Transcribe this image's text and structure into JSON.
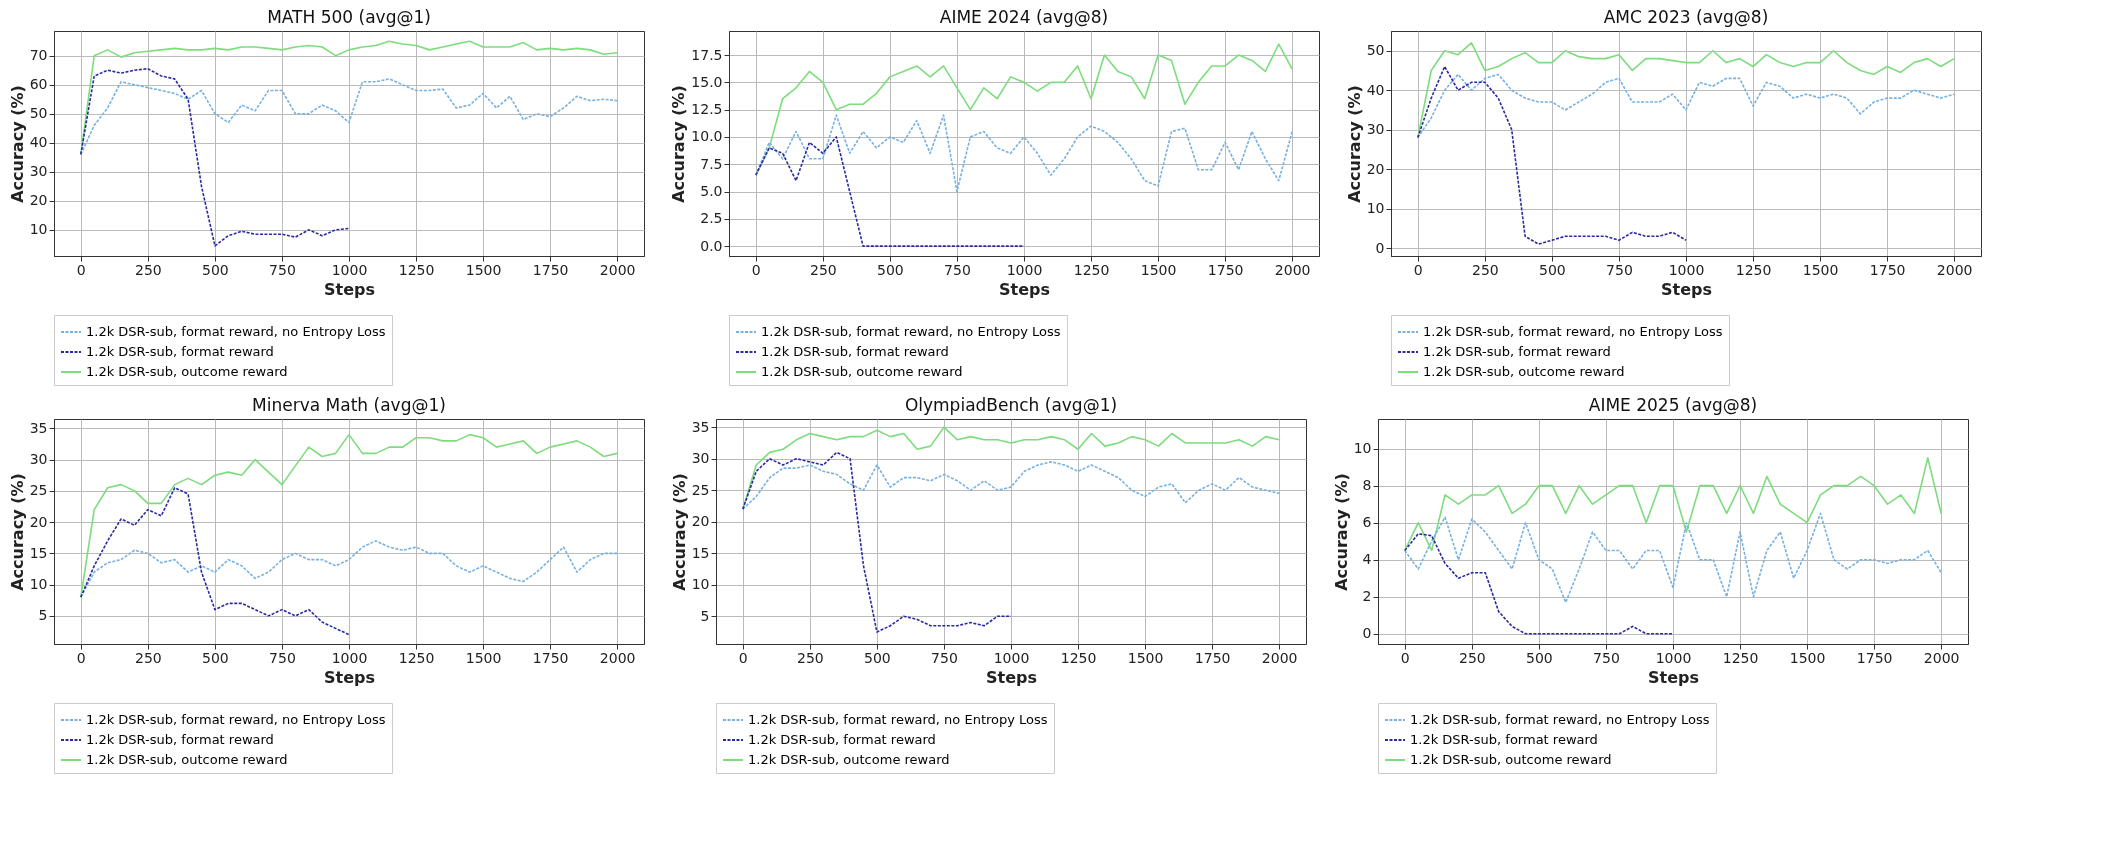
{
  "chart_data": [
    {
      "type": "line",
      "title": "MATH 500 (avg@1)",
      "xlabel": "Steps",
      "ylabel": "Accuracy (%)",
      "grid": true,
      "legend": "bottom",
      "xlim": [
        -100,
        2100
      ],
      "xticks": [
        0,
        250,
        500,
        750,
        1000,
        1250,
        1500,
        1750,
        2000
      ],
      "ylim": [
        1,
        78.5
      ],
      "yticks": [
        10,
        20,
        30,
        40,
        50,
        60,
        70
      ],
      "x": [
        0,
        50,
        100,
        150,
        200,
        250,
        300,
        350,
        400,
        450,
        500,
        550,
        600,
        650,
        700,
        750,
        800,
        850,
        900,
        950,
        1000,
        1050,
        1100,
        1150,
        1200,
        1250,
        1300,
        1350,
        1400,
        1450,
        1500,
        1550,
        1600,
        1650,
        1700,
        1750,
        1800,
        1850,
        1900,
        1950,
        2000
      ],
      "series": [
        {
          "name": "1.2k DSR-sub, format reward, no Entropy Loss",
          "color": "#76b1e0",
          "line_style": "dashed",
          "values": [
            36,
            46,
            52,
            61,
            60,
            59,
            58,
            57,
            55,
            58,
            50,
            47,
            53,
            51,
            58,
            58,
            50,
            50,
            53,
            51,
            47,
            61,
            61,
            62,
            60,
            58,
            58,
            58.5,
            52,
            53,
            57,
            52,
            56,
            48,
            50,
            49,
            52,
            56,
            54.5,
            55,
            54.5
          ]
        },
        {
          "name": "1.2k DSR-sub, format reward",
          "color": "#2a2aa0",
          "line_style": "dashed",
          "x": [
            0,
            50,
            100,
            150,
            200,
            250,
            300,
            350,
            400,
            450,
            500,
            550,
            600,
            650,
            700,
            750,
            800,
            850,
            900,
            950,
            1000
          ],
          "values": [
            36,
            63,
            65,
            64,
            65,
            65.5,
            63,
            62,
            55,
            25,
            4.5,
            8,
            9.5,
            8.5,
            8.5,
            8.5,
            7.5,
            10,
            8,
            10,
            10.5
          ]
        },
        {
          "name": "1.2k DSR-sub, outcome reward",
          "color": "#7ddc7d",
          "line_style": "solid",
          "values": [
            36,
            70,
            72,
            69.5,
            71,
            71.5,
            72,
            72.5,
            72,
            72,
            72.5,
            72,
            73,
            73,
            72.5,
            72,
            73,
            73.5,
            73,
            70,
            72,
            73,
            73.5,
            75,
            74,
            73.5,
            72,
            73,
            74,
            75,
            73,
            73,
            73,
            74.5,
            72,
            72.5,
            72,
            72.5,
            72,
            70.5,
            71
          ]
        }
      ]
    },
    {
      "type": "line",
      "title": "AIME 2024 (avg@8)",
      "xlabel": "Steps",
      "ylabel": "Accuracy (%)",
      "grid": true,
      "legend": "bottom",
      "xlim": [
        -100,
        2100
      ],
      "xticks": [
        0,
        250,
        500,
        750,
        1000,
        1250,
        1500,
        1750,
        2000
      ],
      "ylim": [
        -0.9,
        19.7
      ],
      "yticks": [
        {
          "value": 0,
          "label": "0.0"
        },
        2.5,
        {
          "value": 5,
          "label": "5.0"
        },
        7.5,
        {
          "value": 10,
          "label": "10.0"
        },
        12.5,
        {
          "value": 15,
          "label": "15.0"
        },
        17.5
      ],
      "x": [
        0,
        50,
        100,
        150,
        200,
        250,
        300,
        350,
        400,
        450,
        500,
        550,
        600,
        650,
        700,
        750,
        800,
        850,
        900,
        950,
        1000,
        1050,
        1100,
        1150,
        1200,
        1250,
        1300,
        1350,
        1400,
        1450,
        1500,
        1550,
        1600,
        1650,
        1700,
        1750,
        1800,
        1850,
        1900,
        1950,
        2000
      ],
      "series": [
        {
          "name": "1.2k DSR-sub, format reward, no Entropy Loss",
          "color": "#76b1e0",
          "line_style": "dashed",
          "values": [
            6.5,
            9.5,
            8,
            10.5,
            8,
            8,
            12,
            8.5,
            10.5,
            9,
            10,
            9.5,
            11.5,
            8.5,
            12,
            5,
            10,
            10.5,
            9,
            8.5,
            10,
            8.5,
            6.5,
            8,
            10,
            11,
            10.5,
            9.5,
            8,
            6,
            5.5,
            10.5,
            10.8,
            7,
            7,
            9.5,
            7,
            10.5,
            8,
            6,
            10.5
          ]
        },
        {
          "name": "1.2k DSR-sub, format reward",
          "color": "#2a2aa0",
          "line_style": "dashed",
          "x": [
            0,
            50,
            100,
            150,
            200,
            250,
            300,
            350,
            400,
            450,
            500,
            550,
            600,
            650,
            700,
            750,
            800,
            850,
            900,
            950,
            1000
          ],
          "values": [
            6.5,
            9,
            8.5,
            6,
            9.5,
            8.5,
            10,
            5,
            0,
            0,
            0,
            0,
            0,
            0,
            0,
            0,
            0,
            0,
            0,
            0,
            0
          ]
        },
        {
          "name": "1.2k DSR-sub, outcome reward",
          "color": "#7ddc7d",
          "line_style": "solid",
          "values": [
            6.5,
            9,
            13.5,
            14.5,
            16,
            15,
            12.5,
            13,
            13,
            14,
            15.5,
            16,
            16.5,
            15.5,
            16.5,
            14.5,
            12.5,
            14.5,
            13.5,
            15.5,
            15,
            14.2,
            15,
            15,
            16.5,
            13.5,
            17.5,
            16,
            15.5,
            13.5,
            17.5,
            17,
            13,
            15,
            16.5,
            16.5,
            17.5,
            17,
            16,
            18.5,
            16.2
          ]
        }
      ]
    },
    {
      "type": "line",
      "title": "AMC 2023 (avg@8)",
      "xlabel": "Steps",
      "ylabel": "Accuracy (%)",
      "grid": true,
      "legend": "bottom",
      "xlim": [
        -100,
        2100
      ],
      "xticks": [
        0,
        250,
        500,
        750,
        1000,
        1250,
        1500,
        1750,
        2000
      ],
      "ylim": [
        -2,
        55
      ],
      "yticks": [
        0,
        10,
        20,
        30,
        40,
        50
      ],
      "x": [
        0,
        50,
        100,
        150,
        200,
        250,
        300,
        350,
        400,
        450,
        500,
        550,
        600,
        650,
        700,
        750,
        800,
        850,
        900,
        950,
        1000,
        1050,
        1100,
        1150,
        1200,
        1250,
        1300,
        1350,
        1400,
        1450,
        1500,
        1550,
        1600,
        1650,
        1700,
        1750,
        1800,
        1850,
        1900,
        1950,
        2000
      ],
      "series": [
        {
          "name": "1.2k DSR-sub, format reward, no Entropy Loss",
          "color": "#76b1e0",
          "line_style": "dashed",
          "values": [
            28,
            33,
            40,
            44,
            40,
            43,
            44,
            40,
            38,
            37,
            37,
            35,
            37,
            39,
            42,
            43,
            37,
            37,
            37,
            39,
            35,
            42,
            41,
            43,
            43,
            36,
            42,
            41,
            38,
            39,
            38,
            39,
            38,
            34,
            37,
            38,
            38,
            40,
            39,
            38,
            39
          ]
        },
        {
          "name": "1.2k DSR-sub, format reward",
          "color": "#2a2aa0",
          "line_style": "dashed",
          "x": [
            0,
            50,
            100,
            150,
            200,
            250,
            300,
            350,
            400,
            450,
            500,
            550,
            600,
            650,
            700,
            750,
            800,
            850,
            900,
            950,
            1000
          ],
          "values": [
            28,
            38,
            46,
            40,
            42,
            42,
            38,
            30,
            3,
            1,
            2,
            3,
            3,
            3,
            3,
            2,
            4,
            3,
            3,
            4,
            2
          ]
        },
        {
          "name": "1.2k DSR-sub, outcome reward",
          "color": "#7ddc7d",
          "line_style": "solid",
          "values": [
            28,
            45,
            50,
            49,
            52,
            45,
            46,
            48,
            49.5,
            47,
            47,
            50,
            48.5,
            48,
            48,
            49,
            45,
            48,
            48,
            47.5,
            47,
            47,
            50,
            47,
            48,
            46,
            49,
            47,
            46,
            47,
            47,
            50,
            47,
            45,
            44,
            46,
            44.5,
            47,
            48,
            46,
            48
          ]
        }
      ]
    },
    {
      "type": "line",
      "title": "Minerva Math (avg@1)",
      "xlabel": "Steps",
      "ylabel": "Accuracy (%)",
      "grid": true,
      "legend": "bottom",
      "xlim": [
        -100,
        2100
      ],
      "xticks": [
        0,
        250,
        500,
        750,
        1000,
        1250,
        1500,
        1750,
        2000
      ],
      "ylim": [
        0.5,
        36.5
      ],
      "yticks": [
        5,
        10,
        15,
        20,
        25,
        30,
        35
      ],
      "x": [
        0,
        50,
        100,
        150,
        200,
        250,
        300,
        350,
        400,
        450,
        500,
        550,
        600,
        650,
        700,
        750,
        800,
        850,
        900,
        950,
        1000,
        1050,
        1100,
        1150,
        1200,
        1250,
        1300,
        1350,
        1400,
        1450,
        1500,
        1550,
        1600,
        1650,
        1700,
        1750,
        1800,
        1850,
        1900,
        1950,
        2000
      ],
      "series": [
        {
          "name": "1.2k DSR-sub, format reward, no Entropy Loss",
          "color": "#76b1e0",
          "line_style": "dashed",
          "values": [
            8,
            12,
            13.5,
            14,
            15.5,
            15,
            13.5,
            14,
            12,
            13,
            12,
            14,
            13,
            11,
            12,
            14,
            15,
            14,
            14,
            13,
            14,
            16,
            17,
            16,
            15.5,
            16,
            15,
            15,
            13,
            12,
            13,
            12,
            11,
            10.5,
            12,
            14,
            16,
            12,
            14,
            15,
            15
          ]
        },
        {
          "name": "1.2k DSR-sub, format reward",
          "color": "#2a2aa0",
          "line_style": "dashed",
          "x": [
            0,
            50,
            100,
            150,
            200,
            250,
            300,
            350,
            400,
            450,
            500,
            550,
            600,
            650,
            700,
            750,
            800,
            850,
            900,
            950,
            1000
          ],
          "values": [
            8,
            13,
            17,
            20.5,
            19.5,
            22,
            21,
            25.5,
            24.5,
            12,
            6,
            7,
            7,
            6,
            5,
            6,
            5,
            6,
            4,
            3,
            2
          ]
        },
        {
          "name": "1.2k DSR-sub, outcome reward",
          "color": "#7ddc7d",
          "line_style": "solid",
          "values": [
            8,
            22,
            25.5,
            26,
            25,
            23,
            23,
            26,
            27,
            26,
            27.5,
            28,
            27.5,
            30,
            28,
            26,
            29,
            32,
            30.5,
            31,
            34,
            31,
            31,
            32,
            32,
            33.5,
            33.5,
            33,
            33,
            34,
            33.5,
            32,
            32.5,
            33,
            31,
            32,
            32.5,
            33,
            32,
            30.5,
            31
          ]
        }
      ]
    },
    {
      "type": "line",
      "title": "OlympiadBench (avg@1)",
      "xlabel": "Steps",
      "ylabel": "Accuracy (%)",
      "grid": true,
      "legend": "bottom",
      "xlim": [
        -100,
        2100
      ],
      "xticks": [
        0,
        250,
        500,
        750,
        1000,
        1250,
        1500,
        1750,
        2000
      ],
      "ylim": [
        0.6,
        36.3
      ],
      "yticks": [
        5,
        10,
        15,
        20,
        25,
        30,
        35
      ],
      "x": [
        0,
        50,
        100,
        150,
        200,
        250,
        300,
        350,
        400,
        450,
        500,
        550,
        600,
        650,
        700,
        750,
        800,
        850,
        900,
        950,
        1000,
        1050,
        1100,
        1150,
        1200,
        1250,
        1300,
        1350,
        1400,
        1450,
        1500,
        1550,
        1600,
        1650,
        1700,
        1750,
        1800,
        1850,
        1900,
        1950,
        2000
      ],
      "series": [
        {
          "name": "1.2k DSR-sub, format reward, no Entropy Loss",
          "color": "#76b1e0",
          "line_style": "dashed",
          "values": [
            22,
            24,
            27,
            28.5,
            28.5,
            29,
            28,
            27.5,
            26,
            25,
            29,
            25.5,
            27,
            27,
            26.5,
            27.5,
            26.5,
            25,
            26.5,
            25,
            25.5,
            28,
            29,
            29.5,
            29,
            28,
            29,
            28,
            27,
            25,
            24,
            25.5,
            26,
            23,
            25,
            26,
            25,
            27,
            25.5,
            25,
            24.5
          ]
        },
        {
          "name": "1.2k DSR-sub, format reward",
          "color": "#2a2aa0",
          "line_style": "dashed",
          "x": [
            0,
            50,
            100,
            150,
            200,
            250,
            300,
            350,
            400,
            450,
            500,
            550,
            600,
            650,
            700,
            750,
            800,
            850,
            900,
            950,
            1000
          ],
          "values": [
            22,
            28,
            30,
            29,
            30,
            29.5,
            29,
            31,
            30,
            13,
            2.5,
            3.5,
            5,
            4.5,
            3.5,
            3.5,
            3.5,
            4,
            3.5,
            5,
            5
          ]
        },
        {
          "name": "1.2k DSR-sub, outcome reward",
          "color": "#7ddc7d",
          "line_style": "solid",
          "values": [
            22,
            29,
            31,
            31.5,
            33,
            34,
            33.5,
            33,
            33.5,
            33.5,
            34.5,
            33.5,
            34,
            31.5,
            32,
            35,
            33,
            33.5,
            33,
            33,
            32.5,
            33,
            33,
            33.5,
            33,
            31.5,
            34,
            32,
            32.5,
            33.5,
            33,
            32,
            34,
            32.5,
            32.5,
            32.5,
            32.5,
            33,
            32,
            33.5,
            33
          ]
        }
      ]
    },
    {
      "type": "line",
      "title": "AIME 2025 (avg@8)",
      "xlabel": "Steps",
      "ylabel": "Accuracy (%)",
      "grid": true,
      "legend": "bottom",
      "xlim": [
        -100,
        2100
      ],
      "xticks": [
        0,
        250,
        500,
        750,
        1000,
        1250,
        1500,
        1750,
        2000
      ],
      "ylim": [
        -0.55,
        11.6
      ],
      "yticks": [
        0,
        2,
        4,
        6,
        8,
        10
      ],
      "x": [
        0,
        50,
        100,
        150,
        200,
        250,
        300,
        350,
        400,
        450,
        500,
        550,
        600,
        650,
        700,
        750,
        800,
        850,
        900,
        950,
        1000,
        1050,
        1100,
        1150,
        1200,
        1250,
        1300,
        1350,
        1400,
        1450,
        1500,
        1550,
        1600,
        1650,
        1700,
        1750,
        1800,
        1850,
        1900,
        1950,
        2000
      ],
      "series": [
        {
          "name": "1.2k DSR-sub, format reward, no Entropy Loss",
          "color": "#76b1e0",
          "line_style": "dashed",
          "values": [
            4.5,
            3.5,
            5,
            6.3,
            4,
            6.2,
            5.5,
            4.5,
            3.5,
            6,
            4,
            3.5,
            1.7,
            3.5,
            5.5,
            4.5,
            4.5,
            3.5,
            4.5,
            4.5,
            2.5,
            6,
            4,
            4,
            2,
            5.5,
            2,
            4.5,
            5.5,
            3,
            4.5,
            6.5,
            4,
            3.5,
            4,
            4,
            3.8,
            4,
            4,
            4.5,
            3.3
          ]
        },
        {
          "name": "1.2k DSR-sub, format reward",
          "color": "#2a2aa0",
          "line_style": "dashed",
          "x": [
            0,
            50,
            100,
            150,
            200,
            250,
            300,
            350,
            400,
            450,
            500,
            550,
            600,
            650,
            700,
            750,
            800,
            850,
            900,
            950,
            1000
          ],
          "values": [
            4.5,
            5.4,
            5.3,
            3.8,
            3,
            3.3,
            3.3,
            1.2,
            0.4,
            0,
            0,
            0,
            0,
            0,
            0,
            0,
            0,
            0.4,
            0,
            0,
            0
          ]
        },
        {
          "name": "1.2k DSR-sub, outcome reward",
          "color": "#7ddc7d",
          "line_style": "solid",
          "values": [
            4.5,
            6,
            4.5,
            7.5,
            7,
            7.5,
            7.5,
            8,
            6.5,
            7,
            8,
            8,
            6.5,
            8,
            7,
            7.5,
            8,
            8,
            6,
            8,
            8,
            5.5,
            8,
            8,
            6.5,
            8,
            6.5,
            8.5,
            7,
            6.5,
            6,
            7.5,
            8,
            8,
            8.5,
            8,
            7,
            7.5,
            6.5,
            9.5,
            6.5
          ]
        }
      ]
    }
  ]
}
